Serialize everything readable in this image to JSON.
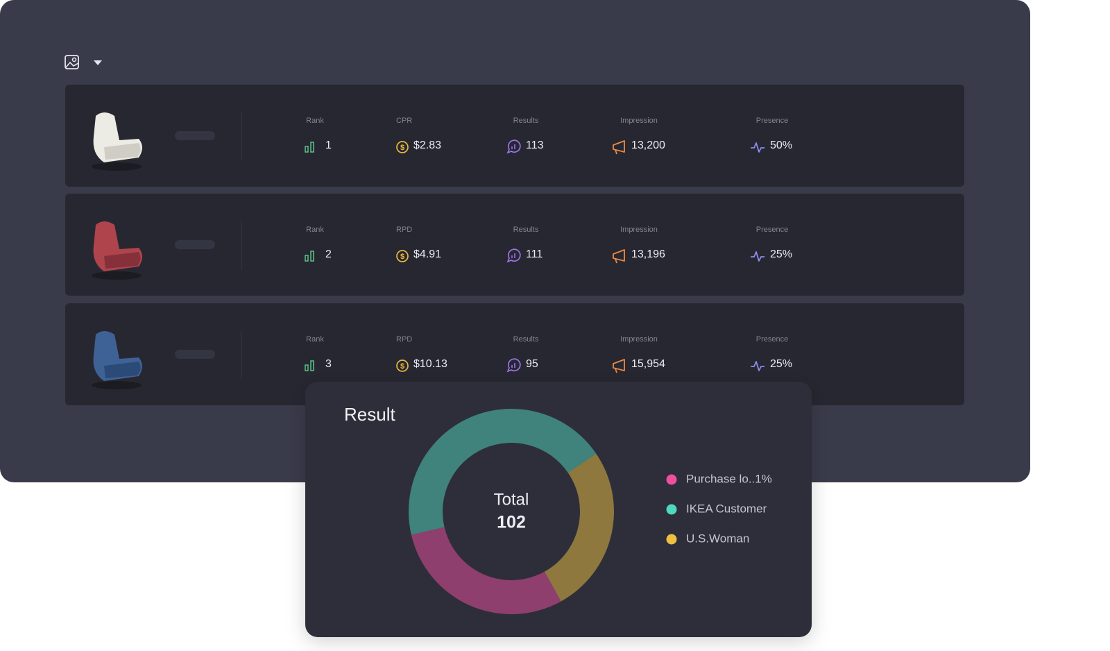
{
  "rows": [
    {
      "metrics": [
        {
          "label": "Rank",
          "value": 1
        },
        {
          "label": "CPR",
          "value": "$2.83"
        },
        {
          "label": "Results",
          "value": 113
        },
        {
          "label": "Impression",
          "value": "13,200"
        },
        {
          "label": "Presence",
          "value": "50%"
        }
      ]
    },
    {
      "metrics": [
        {
          "label": "Rank",
          "value": 2
        },
        {
          "label": "RPD",
          "value": "$4.91"
        },
        {
          "label": "Results",
          "value": 111
        },
        {
          "label": "Impression",
          "value": "13,196"
        },
        {
          "label": "Presence",
          "value": "25%"
        }
      ]
    },
    {
      "metrics": [
        {
          "label": "Rank",
          "value": 3
        },
        {
          "label": "RPD",
          "value": "$10.13"
        },
        {
          "label": "Results",
          "value": 95
        },
        {
          "label": "Impression",
          "value": "15,954"
        },
        {
          "label": "Presence",
          "value": "25%"
        }
      ]
    }
  ],
  "chart_data": {
    "type": "donut",
    "title": "Result",
    "center_label": "Total",
    "center_value": 102,
    "categories": [
      "Purchase lo..1%",
      "IKEA Customer",
      "U.S.Woman"
    ],
    "values": [
      30,
      45,
      27
    ],
    "colors": [
      "#ef4f9f",
      "#4fd8bd",
      "#edc140"
    ]
  }
}
